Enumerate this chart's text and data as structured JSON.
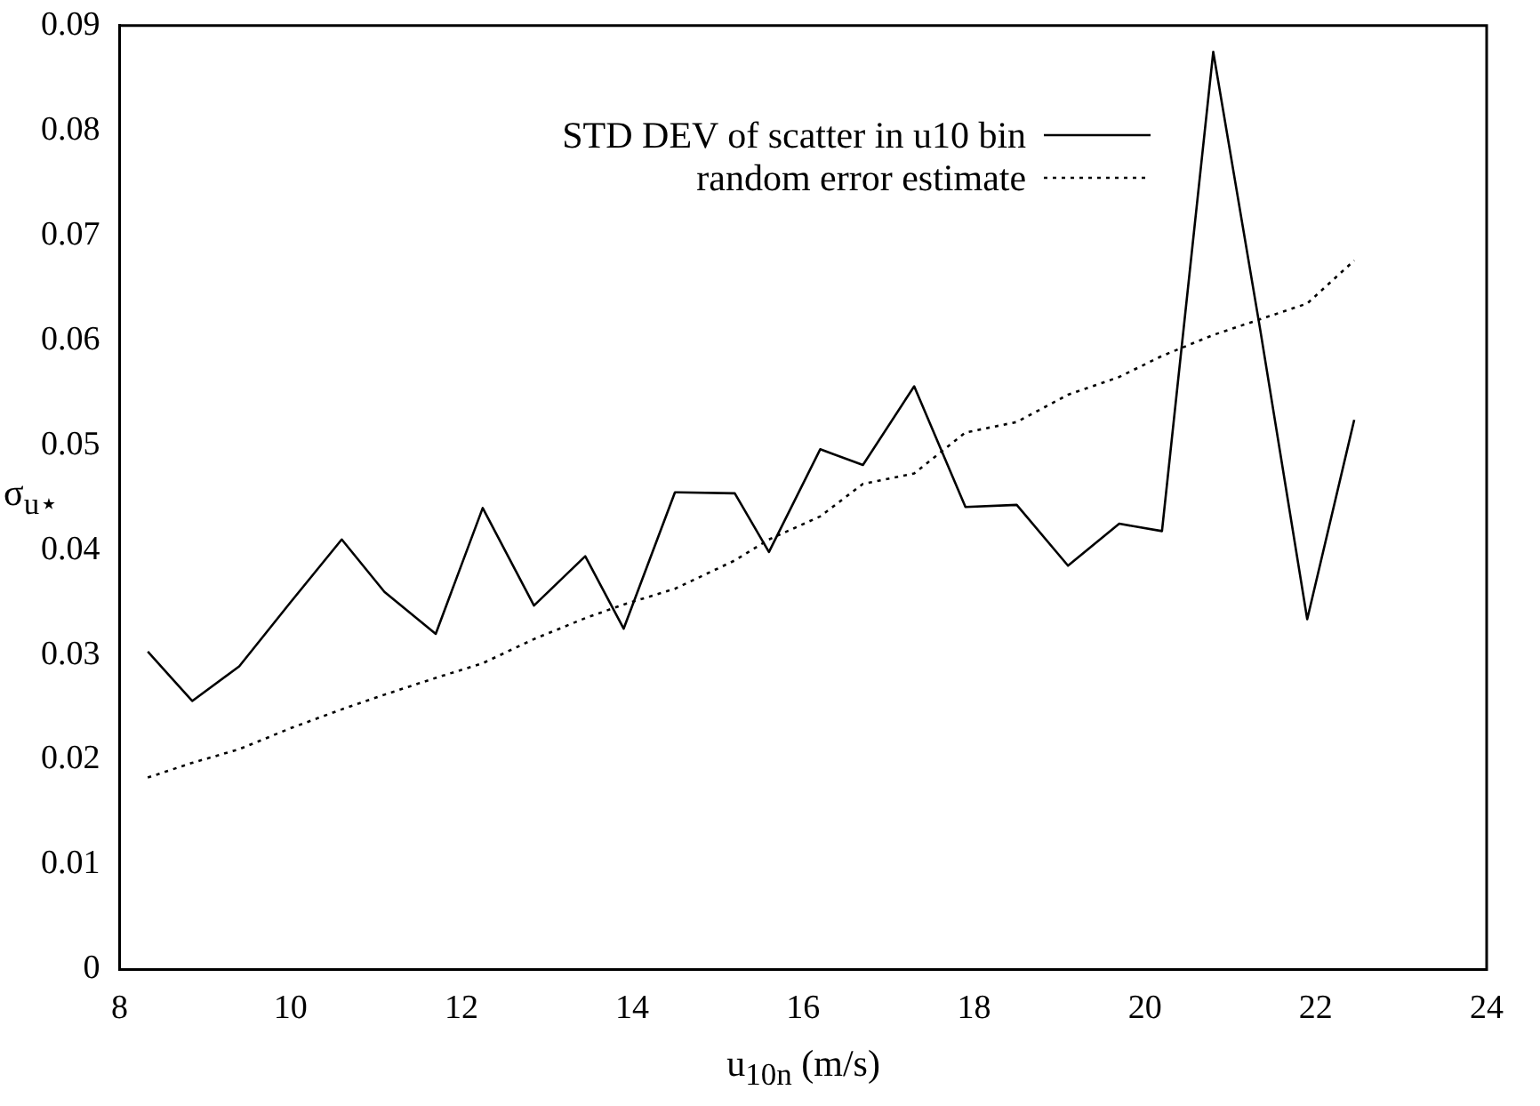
{
  "chart_data": {
    "type": "line",
    "xlabel": "u$_{10n}$ (m/s)",
    "ylabel": "σ$_{u⋆}$",
    "xlim": [
      8,
      24
    ],
    "xticks": [
      8,
      10,
      12,
      14,
      16,
      18,
      20,
      22,
      24
    ],
    "ylim": [
      0,
      0.09
    ],
    "yticks": [
      0,
      0.01,
      0.02,
      0.03,
      0.04,
      0.05,
      0.06,
      0.07,
      0.08,
      0.09
    ],
    "grid": false,
    "legend": "top",
    "marker": "none",
    "x": [
      8.33,
      8.85,
      9.4,
      10.0,
      10.6,
      11.1,
      11.7,
      12.25,
      12.85,
      13.45,
      13.9,
      14.5,
      15.2,
      15.6,
      16.2,
      16.7,
      17.3,
      17.9,
      18.5,
      19.1,
      19.7,
      20.2,
      20.8,
      21.35,
      21.9,
      22.45
    ],
    "series": [
      {
        "name": "STD DEV of scatter in u10 bin",
        "color": "#000000",
        "line_style": "solid",
        "values": [
          0.0303,
          0.0256,
          0.0289,
          0.035,
          0.041,
          0.036,
          0.032,
          0.044,
          0.0347,
          0.0394,
          0.0325,
          0.0455,
          0.0454,
          0.0398,
          0.0496,
          0.0481,
          0.0556,
          0.0441,
          0.0443,
          0.0385,
          0.0425,
          0.0418,
          0.0875,
          0.061,
          0.0334,
          0.0524
        ]
      },
      {
        "name": "random error estimate",
        "color": "#000000",
        "line_style": "dotted",
        "values": [
          0.0183,
          0.0197,
          0.021,
          0.023,
          0.0248,
          0.0262,
          0.0278,
          0.0292,
          0.0315,
          0.0335,
          0.0348,
          0.0363,
          0.039,
          0.041,
          0.0432,
          0.0463,
          0.0473,
          0.0512,
          0.0522,
          0.0548,
          0.0565,
          0.0585,
          0.0605,
          0.062,
          0.0635,
          0.0676
        ]
      }
    ]
  }
}
